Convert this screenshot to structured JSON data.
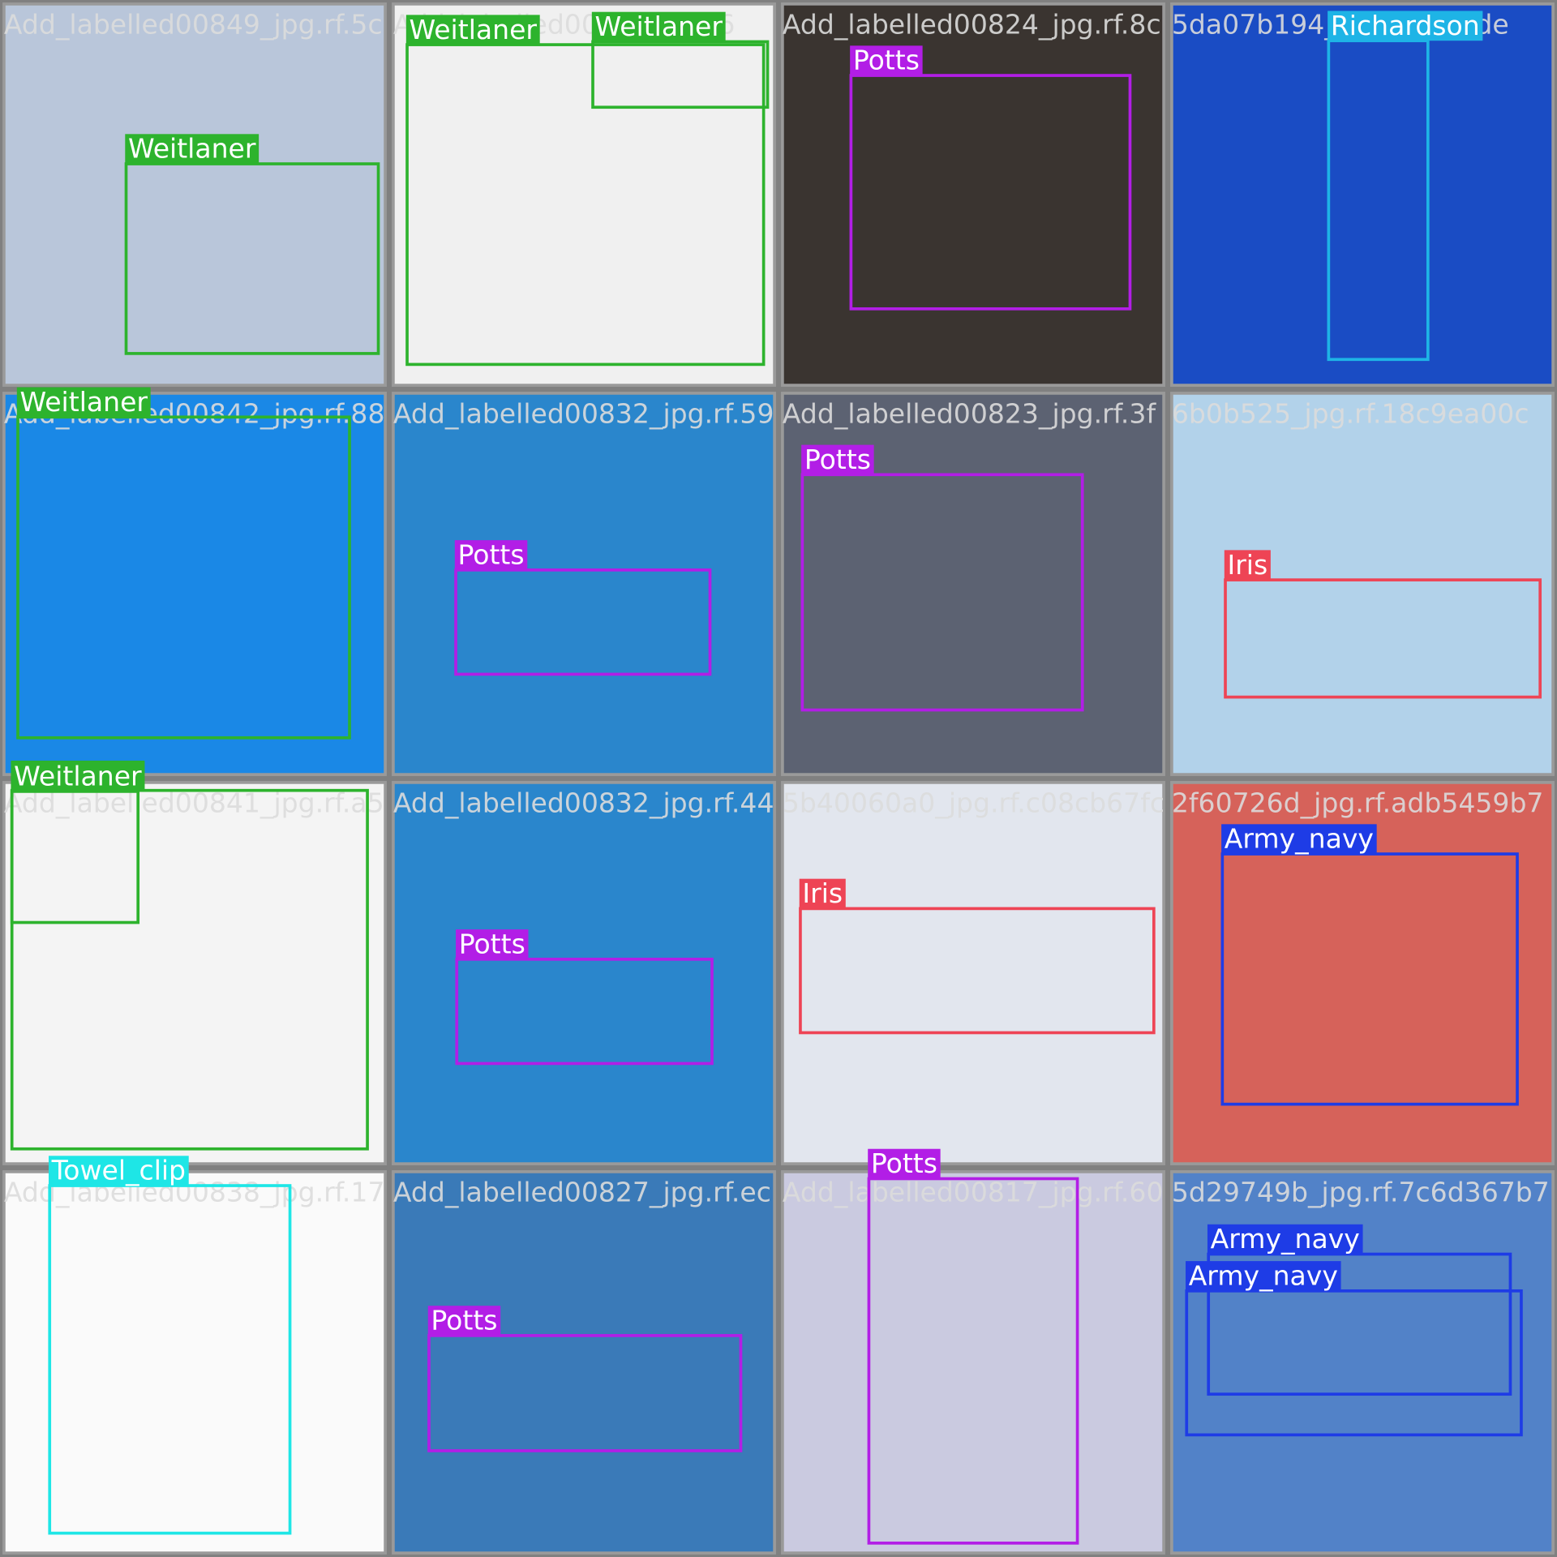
{
  "tiles": [
    {
      "filename": "Add_labelled00849_jpg.rf.5c",
      "boxes": [
        {
          "label": "Weitlaner"
        }
      ]
    },
    {
      "filename": "Add_labelled00...jpg.rf.76",
      "boxes": [
        {
          "label": "Weitlaner"
        },
        {
          "label": "Weitlaner"
        }
      ]
    },
    {
      "filename": "Add_labelled00824_jpg.rf.8c",
      "boxes": [
        {
          "label": "Potts"
        }
      ]
    },
    {
      "filename": "5da07b194_jpg.rf...68fde",
      "boxes": [
        {
          "label": "Richardson"
        }
      ]
    },
    {
      "filename": "Add_labelled00842_jpg.rf.88",
      "boxes": [
        {
          "label": "Weitlaner"
        }
      ]
    },
    {
      "filename": "Add_labelled00832_jpg.rf.59",
      "boxes": [
        {
          "label": "Potts"
        }
      ]
    },
    {
      "filename": "Add_labelled00823_jpg.rf.3f",
      "boxes": [
        {
          "label": "Potts"
        }
      ]
    },
    {
      "filename": "6b0b525_jpg.rf.18c9ea00c",
      "boxes": [
        {
          "label": "Iris"
        }
      ]
    },
    {
      "filename": "Add_labelled00841_jpg.rf.a5",
      "boxes": [
        {
          "label": "Weitlaner"
        },
        {
          "label": "Weitlaner"
        }
      ]
    },
    {
      "filename": "Add_labelled00832_jpg.rf.44",
      "boxes": [
        {
          "label": "Potts"
        }
      ]
    },
    {
      "filename": "5b40060a0_jpg.rf.c08cb67fc",
      "boxes": [
        {
          "label": "Iris"
        }
      ]
    },
    {
      "filename": "2f60726d_jpg.rf.adb5459b7",
      "boxes": [
        {
          "label": "Army_navy"
        }
      ]
    },
    {
      "filename": "Add_labelled00838_jpg.rf.17",
      "boxes": [
        {
          "label": "Towel_clip"
        }
      ]
    },
    {
      "filename": "Add_labelled00827_jpg.rf.ec",
      "boxes": [
        {
          "label": "Potts"
        }
      ]
    },
    {
      "filename": "Add_labelled00817_jpg.rf.60",
      "boxes": [
        {
          "label": "Potts"
        }
      ]
    },
    {
      "filename": "5d29749b_jpg.rf.7c6d367b7",
      "boxes": [
        {
          "label": "Army_navy"
        },
        {
          "label": "Army_navy"
        }
      ]
    }
  ]
}
